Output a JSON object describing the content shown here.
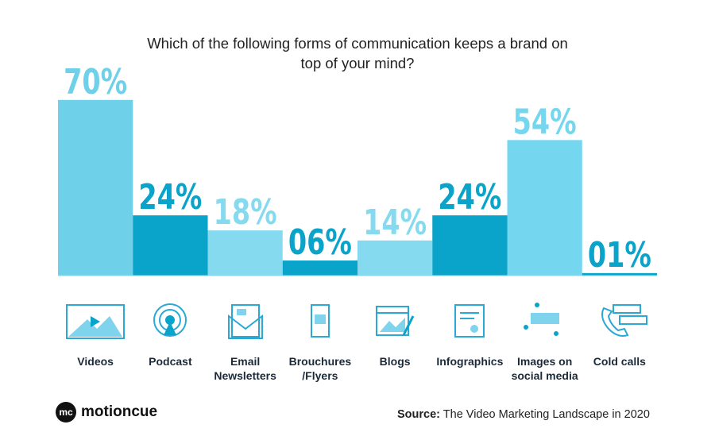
{
  "chart_data": {
    "type": "bar",
    "title": "Which of the following forms of communication keeps a brand on top of your mind?",
    "categories": [
      "Videos",
      "Podcast",
      "Email Newsletters",
      "Brouchures /Flyers",
      "Blogs",
      "Infographics",
      "Images on social media",
      "Cold calls"
    ],
    "values": [
      70,
      24,
      18,
      6,
      14,
      24,
      54,
      1
    ],
    "value_labels": [
      "70%",
      "24%",
      "18%",
      "06%",
      "14%",
      "24%",
      "54%",
      "01%"
    ],
    "colors": [
      "#6fd0ea",
      "#0aa3c9",
      "#86daf0",
      "#0aa3c9",
      "#86daf0",
      "#0aa3c9",
      "#74d6ef",
      "#0aa3c9"
    ]
  },
  "brand": {
    "mark": "mc",
    "name": "motioncue"
  },
  "source": {
    "label": "Source:",
    "text": "The Video Marketing Landscape in 2020"
  }
}
